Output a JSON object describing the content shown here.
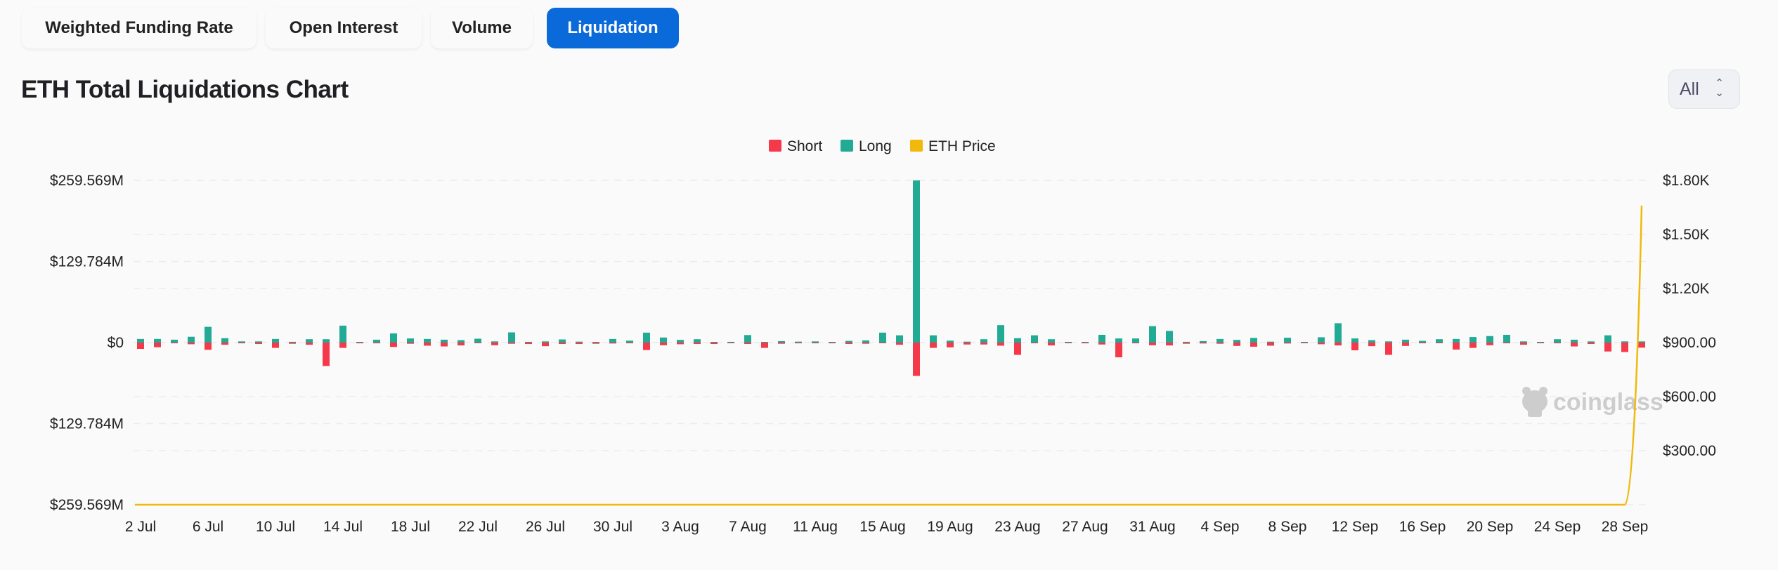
{
  "tabs": [
    {
      "label": "Weighted Funding Rate",
      "active": false
    },
    {
      "label": "Open Interest",
      "active": false
    },
    {
      "label": "Volume",
      "active": false
    },
    {
      "label": "Liquidation",
      "active": true
    }
  ],
  "title": "ETH Total Liquidations Chart",
  "range_select": {
    "value": "All",
    "icon": "up-down-chevron-icon"
  },
  "watermark": "coinglass",
  "colors": {
    "short": "#f6394a",
    "long": "#22ab94",
    "price": "#f0b90b",
    "active_tab": "#0b6ad9"
  },
  "chart_data": {
    "type": "bar",
    "stacked": "diverging",
    "legend": [
      "Short",
      "Long",
      "ETH Price"
    ],
    "legend_placement": "top-center",
    "grid": true,
    "x_tick_labels": [
      "2 Jul",
      "6 Jul",
      "10 Jul",
      "14 Jul",
      "18 Jul",
      "22 Jul",
      "26 Jul",
      "30 Jul",
      "3 Aug",
      "7 Aug",
      "11 Aug",
      "15 Aug",
      "19 Aug",
      "23 Aug",
      "27 Aug",
      "31 Aug",
      "4 Sep",
      "8 Sep",
      "12 Sep",
      "16 Sep",
      "20 Sep",
      "24 Sep",
      "28 Sep"
    ],
    "x_range": [
      "2 Jul",
      "29 Sep"
    ],
    "y_left": {
      "unit": "USD millions",
      "ylim": [
        -259.569,
        259.569
      ],
      "tick_labels": [
        "$259.569M",
        "$129.784M",
        "$0",
        "$129.784M",
        "$259.569M"
      ]
    },
    "y_right": {
      "unit": "USD",
      "ylim": [
        0,
        1800
      ],
      "tick_labels": [
        "$1.80K",
        "$1.50K",
        "$1.20K",
        "$900.00",
        "$600.00",
        "$300.00"
      ]
    },
    "series": [
      {
        "name": "Long",
        "axis": "left",
        "values": [
          5.8,
          5.8,
          4.6,
          9.3,
          25.2,
          7.0,
          1.9,
          1.9,
          5.8,
          1.2,
          5.4,
          5.4,
          27.1,
          0.8,
          4.6,
          14.7,
          6.6,
          5.8,
          4.6,
          3.9,
          6.2,
          1.9,
          16.3,
          1.2,
          1.9,
          5.0,
          1.5,
          0.4,
          5.8,
          3.1,
          15.9,
          8.1,
          4.3,
          5.4,
          0.4,
          1.2,
          12.0,
          0.8,
          2.3,
          1.5,
          1.9,
          0.4,
          2.7,
          3.5,
          15.9,
          11.6,
          259.569,
          11.6,
          3.1,
          1.5,
          5.4,
          27.9,
          7.0,
          11.6,
          5.4,
          0.8,
          0.4,
          12.4,
          6.6,
          6.6,
          26.3,
          18.6,
          1.2,
          2.3,
          5.8,
          4.3,
          7.4,
          1.5,
          7.7,
          0.4,
          8.5,
          31.0,
          6.6,
          3.9,
          1.9,
          4.6,
          2.7,
          5.4,
          5.8,
          8.9,
          10.4,
          12.4,
          1.9,
          0.8,
          5.4,
          4.6,
          1.9,
          11.6,
          1.9,
          1.9
        ]
      },
      {
        "name": "Short",
        "axis": "left",
        "values": [
          10.1,
          7.4,
          1.2,
          2.7,
          11.6,
          3.5,
          1.2,
          2.3,
          8.5,
          1.9,
          3.5,
          37.5,
          8.5,
          1.2,
          1.2,
          7.0,
          1.9,
          5.0,
          6.2,
          4.6,
          0.8,
          4.3,
          1.9,
          2.3,
          5.8,
          2.3,
          2.3,
          1.9,
          1.5,
          1.2,
          12.0,
          4.3,
          2.7,
          2.3,
          2.3,
          0.8,
          2.3,
          8.5,
          1.9,
          1.2,
          1.2,
          1.2,
          2.3,
          1.9,
          0.4,
          3.5,
          53.4,
          8.5,
          7.7,
          3.1,
          3.1,
          5.0,
          19.7,
          1.2,
          4.6,
          0.8,
          1.2,
          3.1,
          23.6,
          1.2,
          4.3,
          4.6,
          1.9,
          1.5,
          1.9,
          5.4,
          6.6,
          5.0,
          1.5,
          0.8,
          2.7,
          4.6,
          12.4,
          5.8,
          19.7,
          5.4,
          1.2,
          0.8,
          11.2,
          8.5,
          4.3,
          1.2,
          3.5,
          0.8,
          1.2,
          6.2,
          2.3,
          14.3,
          15.1,
          8.1
        ]
      },
      {
        "name": "ETH Price",
        "axis": "right",
        "type": "line",
        "values": [
          0,
          0,
          0,
          0,
          0,
          0,
          0,
          0,
          0,
          0,
          0,
          0,
          0,
          0,
          0,
          0,
          0,
          0,
          0,
          0,
          0,
          0,
          0,
          0,
          0,
          0,
          0,
          0,
          0,
          0,
          0,
          0,
          0,
          0,
          0,
          0,
          0,
          0,
          0,
          0,
          0,
          0,
          0,
          0,
          0,
          0,
          0,
          0,
          0,
          0,
          0,
          0,
          0,
          0,
          0,
          0,
          0,
          0,
          0,
          0,
          0,
          0,
          0,
          0,
          0,
          0,
          0,
          0,
          0,
          0,
          0,
          0,
          0,
          0,
          0,
          0,
          0,
          0,
          0,
          0,
          0,
          0,
          0,
          0,
          0,
          0,
          0,
          0,
          0,
          1660
        ]
      }
    ]
  }
}
